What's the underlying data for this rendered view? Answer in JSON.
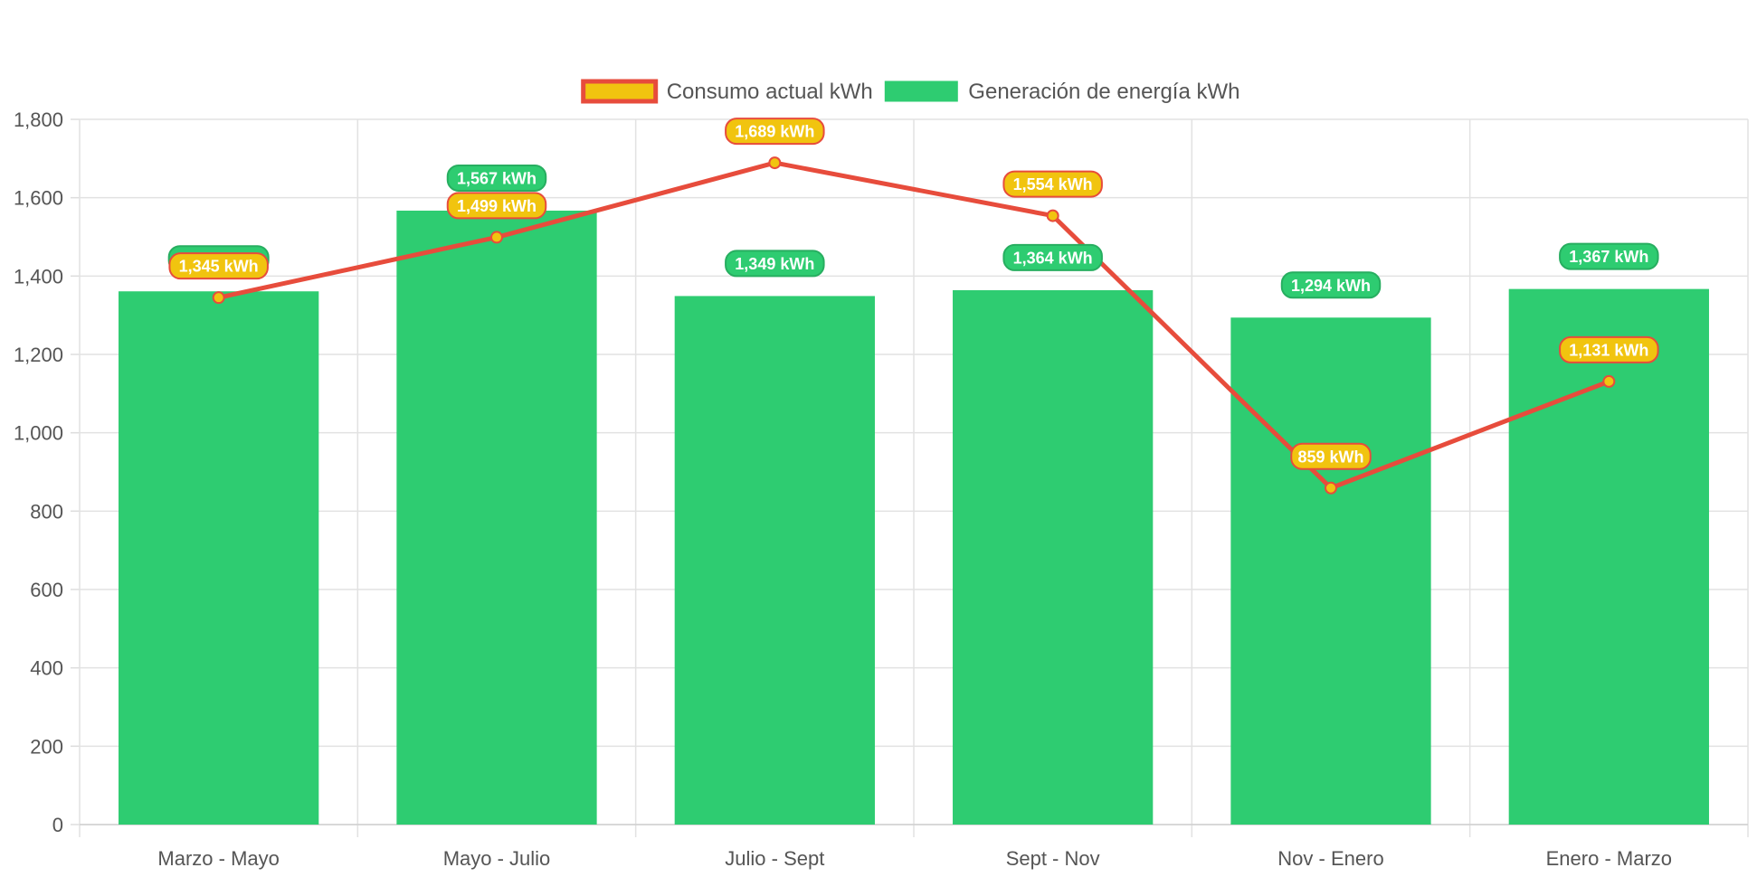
{
  "chart_data": {
    "type": "bar",
    "categories": [
      "Marzo - Mayo",
      "Mayo - Julio",
      "Julio - Sept",
      "Sept - Nov",
      "Nov - Enero",
      "Enero - Marzo"
    ],
    "series": [
      {
        "name": "Generación de energía kWh",
        "type": "bar",
        "values": [
          1361,
          1567,
          1349,
          1364,
          1294,
          1367
        ],
        "labels": [
          "",
          "1,567 kWh",
          "1,349 kWh",
          "1,364 kWh",
          "1,294 kWh",
          "1,367 kWh"
        ],
        "color": "#2ecc71"
      },
      {
        "name": "Consumo actual kWh",
        "type": "line",
        "values": [
          1345,
          1499,
          1689,
          1554,
          859,
          1131
        ],
        "labels": [
          "1,345 kWh",
          "1,499 kWh",
          "1,689 kWh",
          "1,554 kWh",
          "859 kWh",
          "1,131 kWh"
        ],
        "color": "#e74c3c",
        "fill": "#f1c40f"
      }
    ],
    "legend_order": [
      1,
      0
    ],
    "ylim": [
      0,
      1800
    ],
    "yticks": [
      0,
      200,
      400,
      600,
      800,
      1000,
      1200,
      1400,
      1600,
      1800
    ],
    "ytick_labels": [
      "0",
      "200",
      "400",
      "600",
      "800",
      "1,000",
      "1,200",
      "1,400",
      "1,600",
      "1,800"
    ],
    "grid": true,
    "legend_position": "top-center",
    "title": "",
    "xlabel": "",
    "ylabel": ""
  }
}
